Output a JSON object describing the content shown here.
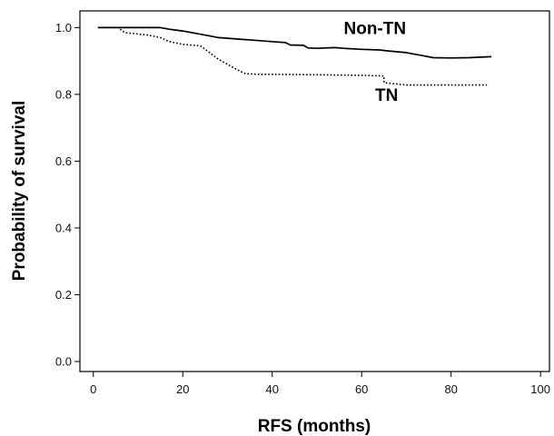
{
  "chart_data": {
    "type": "line",
    "xlabel": "RFS (months)",
    "ylabel": "Probability of survival",
    "xlim": [
      -3,
      102
    ],
    "ylim": [
      -0.03,
      1.05
    ],
    "xticks": [
      0,
      20,
      40,
      60,
      80,
      100
    ],
    "yticks": [
      0.0,
      0.2,
      0.4,
      0.6,
      0.8,
      1.0
    ],
    "xtick_labels": [
      "0",
      "20",
      "40",
      "60",
      "80",
      "100"
    ],
    "ytick_labels": [
      "0.0",
      "0.2",
      "0.4",
      "0.6",
      "0.8",
      "1.0"
    ],
    "grid": false,
    "legend": "none",
    "series": [
      {
        "name": "Non-TN",
        "style": "solid",
        "color": "#000000",
        "x": [
          1,
          15,
          17,
          20,
          22,
          24,
          26,
          28,
          30,
          32,
          36,
          40,
          43,
          44,
          47,
          48,
          50,
          54,
          56,
          60,
          64,
          66,
          70,
          72,
          74,
          76,
          80,
          84,
          89
        ],
        "y": [
          1.0,
          1.0,
          0.995,
          0.99,
          0.985,
          0.98,
          0.975,
          0.97,
          0.968,
          0.966,
          0.962,
          0.958,
          0.955,
          0.948,
          0.947,
          0.939,
          0.938,
          0.94,
          0.938,
          0.935,
          0.933,
          0.93,
          0.925,
          0.92,
          0.915,
          0.91,
          0.909,
          0.91,
          0.913
        ]
      },
      {
        "name": "TN",
        "style": "dotted",
        "color": "#000000",
        "x": [
          6,
          7,
          12,
          15,
          17,
          20,
          24,
          26,
          28,
          30,
          32,
          34,
          37,
          40,
          60,
          65,
          65,
          70,
          88
        ],
        "y": [
          0.995,
          0.985,
          0.978,
          0.97,
          0.958,
          0.95,
          0.945,
          0.925,
          0.905,
          0.89,
          0.875,
          0.862,
          0.86,
          0.86,
          0.857,
          0.855,
          0.835,
          0.828,
          0.828
        ]
      }
    ],
    "annotations": [
      {
        "text": "Non-TN",
        "x": 56,
        "y": 1.0
      },
      {
        "text": "TN",
        "x": 63,
        "y": 0.8
      }
    ]
  }
}
